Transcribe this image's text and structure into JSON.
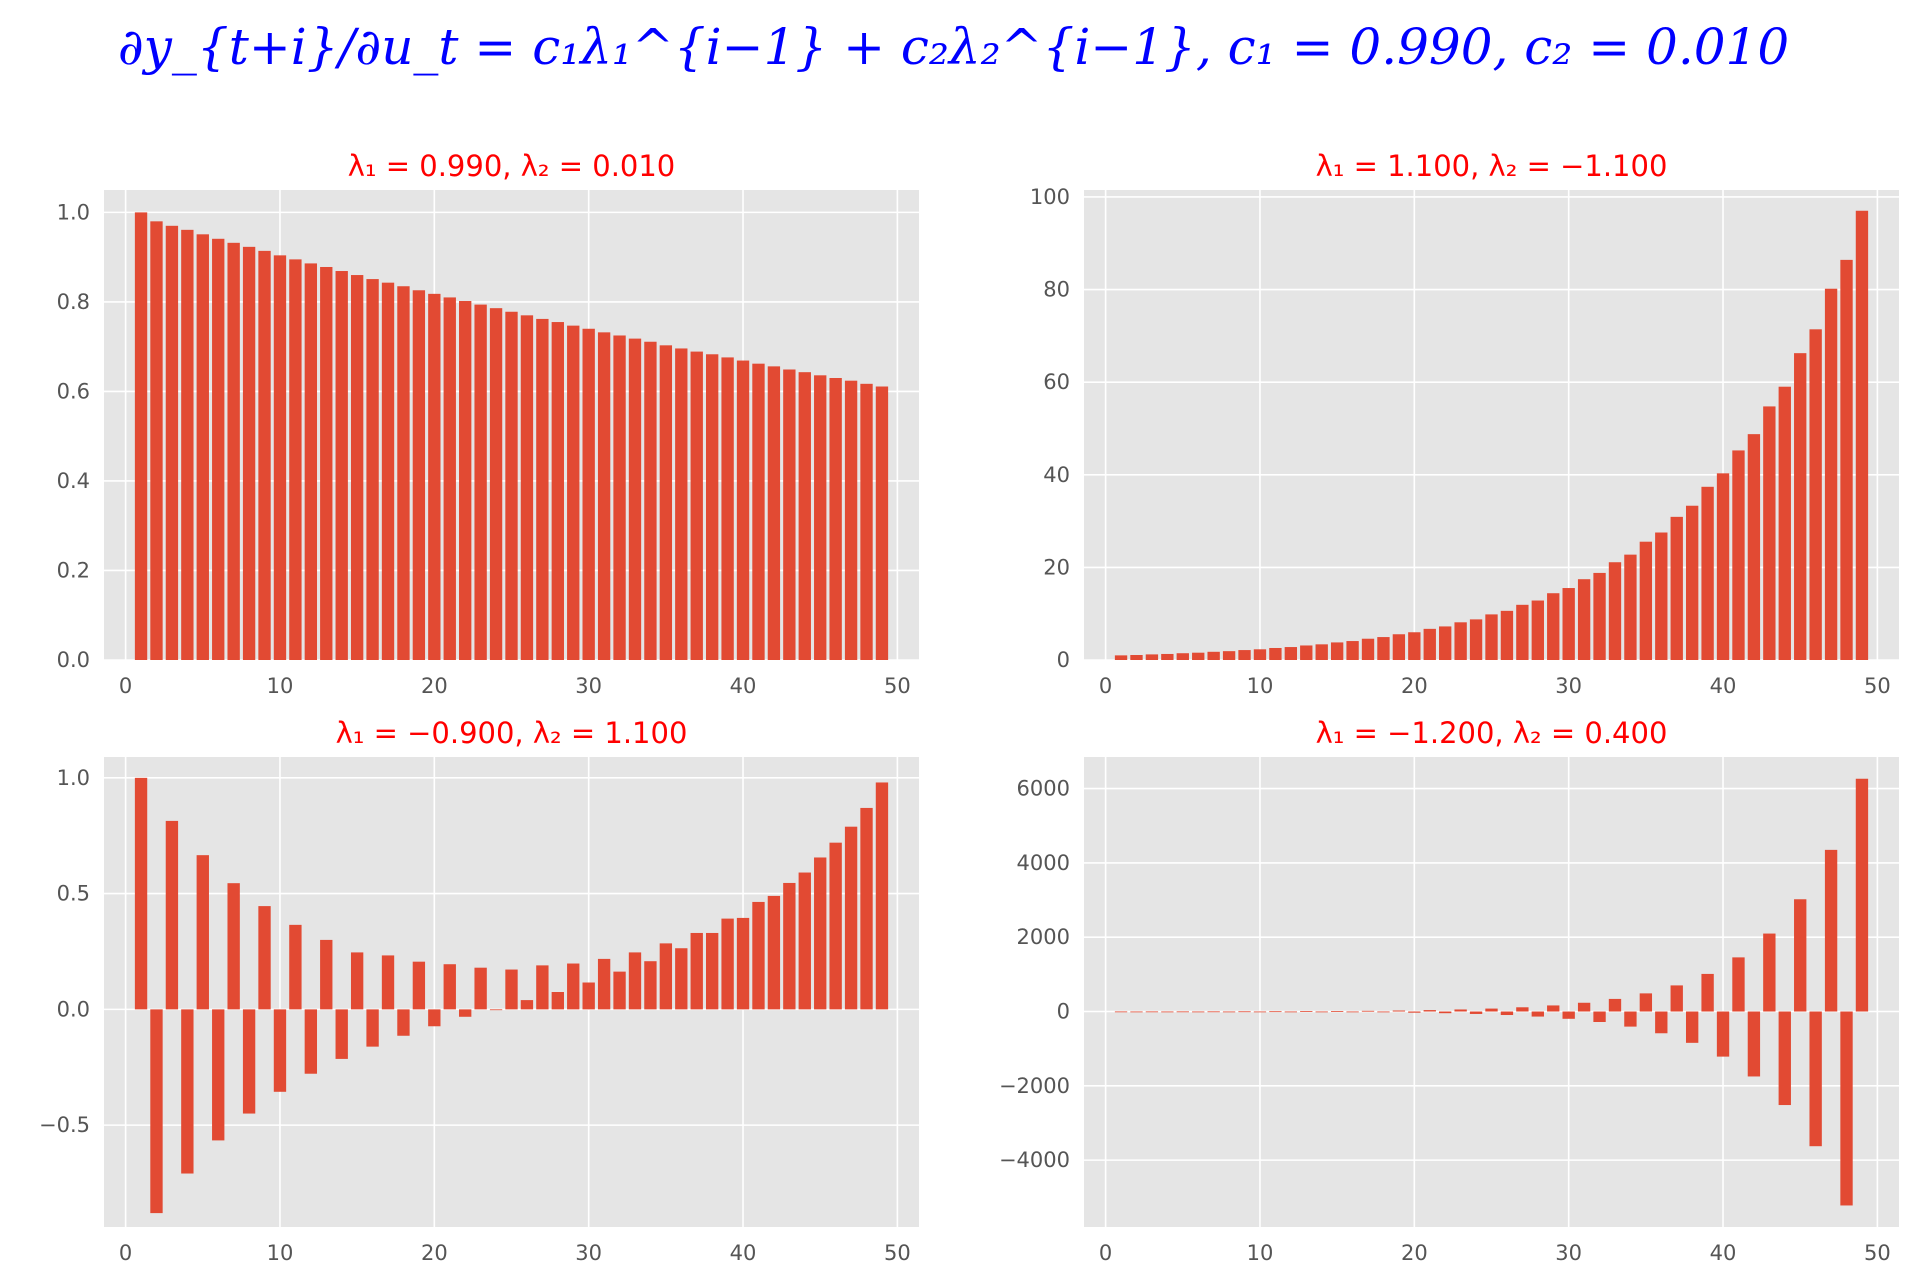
{
  "suptitle": "∂y_{t+i}/∂u_t = c₁λ₁^{i−1} + c₂λ₂^{i−1}, c₁ = 0.990, c₂ = 0.010",
  "colors": {
    "bar": "#e24a33",
    "panel_bg": "#e5e5e5",
    "grid": "#ffffff",
    "title": "#ff0000",
    "suptitle": "#0000ff"
  },
  "chart_data": [
    {
      "type": "bar",
      "title": "λ₁ = 0.990,  λ₂ = 0.010",
      "x": [
        1,
        2,
        3,
        4,
        5,
        6,
        7,
        8,
        9,
        10,
        11,
        12,
        13,
        14,
        15,
        16,
        17,
        18,
        19,
        20,
        21,
        22,
        23,
        24,
        25,
        26,
        27,
        28,
        29,
        30,
        31,
        32,
        33,
        34,
        35,
        36,
        37,
        38,
        39,
        40,
        41,
        42,
        43,
        44,
        45,
        46,
        47,
        48,
        49
      ],
      "values": [
        1.0,
        0.98,
        0.97,
        0.961,
        0.951,
        0.941,
        0.932,
        0.923,
        0.914,
        0.904,
        0.895,
        0.886,
        0.878,
        0.869,
        0.86,
        0.851,
        0.843,
        0.835,
        0.826,
        0.818,
        0.81,
        0.802,
        0.794,
        0.786,
        0.778,
        0.77,
        0.762,
        0.755,
        0.747,
        0.74,
        0.732,
        0.725,
        0.718,
        0.711,
        0.703,
        0.696,
        0.689,
        0.683,
        0.676,
        0.669,
        0.662,
        0.656,
        0.649,
        0.643,
        0.636,
        0.63,
        0.624,
        0.617,
        0.611
      ],
      "xlim": [
        -1.4,
        51.4
      ],
      "ylim": [
        0,
        1.05
      ],
      "xticks": [
        0,
        10,
        20,
        30,
        40,
        50
      ],
      "xtick_labels": [
        "0",
        "10",
        "20",
        "30",
        "40",
        "50"
      ],
      "yticks": [
        0,
        0.2,
        0.4,
        0.6,
        0.8,
        1.0
      ],
      "ytick_labels": [
        "0.0",
        "0.2",
        "0.4",
        "0.6",
        "0.8",
        "1.0"
      ]
    },
    {
      "type": "bar",
      "title": "λ₁ = 1.100,  λ₂ = −1.100",
      "x": [
        1,
        2,
        3,
        4,
        5,
        6,
        7,
        8,
        9,
        10,
        11,
        12,
        13,
        14,
        15,
        16,
        17,
        18,
        19,
        20,
        21,
        22,
        23,
        24,
        25,
        26,
        27,
        28,
        29,
        30,
        31,
        32,
        33,
        34,
        35,
        36,
        37,
        38,
        39,
        40,
        41,
        42,
        43,
        44,
        45,
        46,
        47,
        48,
        49
      ],
      "values": [
        1.0,
        1.078,
        1.21,
        1.304,
        1.464,
        1.578,
        1.772,
        1.909,
        2.144,
        2.31,
        2.594,
        2.795,
        3.138,
        3.382,
        3.797,
        4.092,
        4.595,
        4.952,
        5.56,
        5.992,
        6.727,
        7.25,
        8.14,
        8.773,
        9.85,
        10.615,
        11.918,
        12.844,
        14.421,
        15.541,
        17.449,
        18.805,
        21.114,
        22.754,
        25.548,
        27.533,
        30.913,
        33.315,
        37.404,
        40.311,
        45.259,
        48.776,
        54.764,
        59.019,
        66.264,
        71.413,
        80.18,
        86.41,
        97.018
      ],
      "xlim": [
        -1.4,
        51.4
      ],
      "ylim": [
        0,
        101.5
      ],
      "xticks": [
        0,
        10,
        20,
        30,
        40,
        50
      ],
      "xtick_labels": [
        "0",
        "10",
        "20",
        "30",
        "40",
        "50"
      ],
      "yticks": [
        0,
        20,
        40,
        60,
        80,
        100
      ],
      "ytick_labels": [
        "0",
        "20",
        "40",
        "60",
        "80",
        "100"
      ]
    },
    {
      "type": "bar",
      "title": "λ₁ = −0.900,  λ₂ = 1.100",
      "x": [
        1,
        2,
        3,
        4,
        5,
        6,
        7,
        8,
        9,
        10,
        11,
        12,
        13,
        14,
        15,
        16,
        17,
        18,
        19,
        20,
        21,
        22,
        23,
        24,
        25,
        26,
        27,
        28,
        29,
        30,
        31,
        32,
        33,
        34,
        35,
        36,
        37,
        38,
        39,
        40,
        41,
        42,
        43,
        44,
        45,
        46,
        47,
        48,
        49
      ],
      "values": [
        1.0,
        -0.88,
        0.814,
        -0.709,
        0.666,
        -0.566,
        0.545,
        -0.45,
        0.446,
        -0.356,
        0.365,
        -0.278,
        0.3,
        -0.214,
        0.246,
        -0.161,
        0.233,
        -0.114,
        0.206,
        -0.073,
        0.195,
        -0.032,
        0.18,
        -0.003,
        0.172,
        0.04,
        0.19,
        0.075,
        0.198,
        0.116,
        0.218,
        0.163,
        0.246,
        0.208,
        0.285,
        0.264,
        0.33,
        0.33,
        0.392,
        0.395,
        0.464,
        0.49,
        0.546,
        0.591,
        0.656,
        0.72,
        0.789,
        0.87,
        0.98
      ],
      "xlim": [
        -1.4,
        51.4
      ],
      "ylim": [
        -0.94,
        1.09
      ],
      "xticks": [
        0,
        10,
        20,
        30,
        40,
        50
      ],
      "xtick_labels": [
        "0",
        "10",
        "20",
        "30",
        "40",
        "50"
      ],
      "yticks": [
        -0.5,
        0,
        0.5,
        1.0
      ],
      "ytick_labels": [
        "−0.5",
        "0.0",
        "0.5",
        "1.0"
      ]
    },
    {
      "type": "bar",
      "title": "λ₁ = −1.200,  λ₂ = 0.400",
      "x": [
        1,
        2,
        3,
        4,
        5,
        6,
        7,
        8,
        9,
        10,
        11,
        12,
        13,
        14,
        15,
        16,
        17,
        18,
        19,
        20,
        21,
        22,
        23,
        24,
        25,
        26,
        27,
        28,
        29,
        30,
        31,
        32,
        33,
        34,
        35,
        36,
        37,
        38,
        39,
        40,
        41,
        42,
        43,
        44,
        45,
        46,
        47,
        48,
        49
      ],
      "values": [
        1.0,
        -1.18,
        1.43,
        -1.71,
        2.05,
        -2.46,
        2.96,
        -3.55,
        4.26,
        -5.11,
        6.13,
        -7.36,
        8.83,
        -10.6,
        12.7,
        -15.3,
        18.3,
        -22.0,
        26.4,
        -31.7,
        38.0,
        -45.6,
        54.7,
        -65.7,
        78.8,
        -94.6,
        113.5,
        -136.2,
        163.4,
        -196.1,
        235.3,
        -282.4,
        338.9,
        -406.6,
        487.9,
        -585.5,
        702.6,
        -843.2,
        1011.8,
        -1214.1,
        1456.9,
        -1748.3,
        2098.0,
        -2517.6,
        3021.1,
        -3625.3,
        4350.4,
        -5220.5,
        6264.6
      ],
      "xlim": [
        -1.4,
        51.4
      ],
      "ylim": [
        -5800,
        6850
      ],
      "xticks": [
        0,
        10,
        20,
        30,
        40,
        50
      ],
      "xtick_labels": [
        "0",
        "10",
        "20",
        "30",
        "40",
        "50"
      ],
      "yticks": [
        -4000,
        -2000,
        0,
        2000,
        4000,
        6000
      ],
      "ytick_labels": [
        "−4000",
        "−2000",
        "0",
        "2000",
        "4000",
        "6000"
      ]
    }
  ]
}
